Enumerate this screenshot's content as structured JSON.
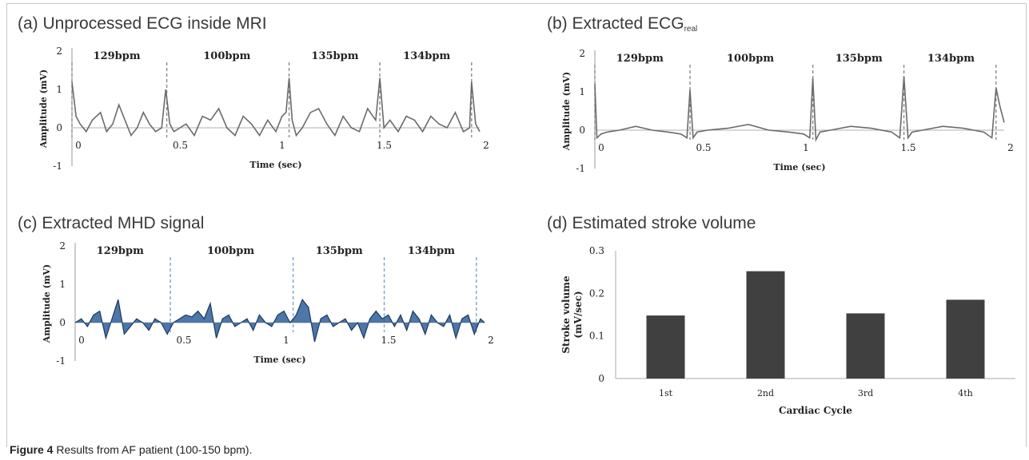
{
  "chart_data": [
    {
      "id": "a",
      "type": "line",
      "title": "(a) Unprocessed ECG inside MRI",
      "xlabel": "Time (sec)",
      "ylabel": "Amplitude (mV)",
      "xlim": [
        0,
        2
      ],
      "ylim": [
        -1,
        2
      ],
      "x_ticks": [
        "0",
        "0.5",
        "1",
        "1.5",
        "2"
      ],
      "y_ticks": [
        "-1",
        "0",
        "1",
        "2"
      ],
      "annotations": [
        "129bpm",
        "100bpm",
        "135bpm",
        "134bpm"
      ],
      "r_peaks_x": [
        0,
        0.465,
        1.065,
        1.51,
        1.96
      ],
      "color": "#6b6b6b",
      "series": [
        {
          "x": [
            0,
            0.02,
            0.04,
            0.07,
            0.1,
            0.14,
            0.17,
            0.2,
            0.23,
            0.26,
            0.29,
            0.32,
            0.35,
            0.38,
            0.41,
            0.44,
            0.46,
            0.48,
            0.5,
            0.53,
            0.56,
            0.6,
            0.64,
            0.68,
            0.72,
            0.76,
            0.8,
            0.84,
            0.88,
            0.92,
            0.96,
            1.0,
            1.03,
            1.05,
            1.065,
            1.08,
            1.1,
            1.13,
            1.17,
            1.21,
            1.25,
            1.29,
            1.33,
            1.37,
            1.41,
            1.45,
            1.49,
            1.51,
            1.53,
            1.56,
            1.6,
            1.64,
            1.68,
            1.72,
            1.76,
            1.8,
            1.84,
            1.88,
            1.92,
            1.95,
            1.96,
            1.98,
            2.0
          ],
          "y": [
            1.2,
            0.3,
            0.1,
            -0.1,
            0.2,
            0.4,
            -0.1,
            0.1,
            0.6,
            0.2,
            -0.2,
            0.0,
            0.4,
            0.1,
            -0.1,
            0.0,
            1.0,
            0.1,
            -0.1,
            0.0,
            0.1,
            -0.2,
            0.3,
            0.2,
            0.5,
            0.0,
            -0.2,
            0.3,
            0.1,
            -0.2,
            0.2,
            -0.1,
            0.3,
            0.4,
            1.3,
            0.2,
            -0.2,
            0.0,
            0.4,
            0.5,
            0.1,
            -0.2,
            0.3,
            0.0,
            -0.1,
            0.5,
            0.2,
            1.3,
            0.0,
            0.2,
            -0.1,
            0.3,
            0.2,
            -0.1,
            0.3,
            0.1,
            0.0,
            0.4,
            -0.1,
            0.0,
            1.2,
            0.1,
            -0.1
          ]
        }
      ]
    },
    {
      "id": "b",
      "type": "line",
      "title": "(b) Extracted ECG",
      "title_subscript": "real",
      "xlabel": "Time (sec)",
      "ylabel": "Amplitude (mV)",
      "xlim": [
        0,
        2
      ],
      "ylim": [
        -1,
        2
      ],
      "x_ticks": [
        "0",
        "0.5",
        "1",
        "1.5",
        "2"
      ],
      "y_ticks": [
        "-1",
        "0",
        "1",
        "2"
      ],
      "annotations": [
        "129bpm",
        "100bpm",
        "135bpm",
        "134bpm"
      ],
      "r_peaks_x": [
        0,
        0.465,
        1.065,
        1.51,
        1.96
      ],
      "color": "#6b6b6b",
      "series": [
        {
          "x": [
            0,
            0.01,
            0.03,
            0.06,
            0.12,
            0.2,
            0.28,
            0.36,
            0.42,
            0.45,
            0.465,
            0.48,
            0.5,
            0.55,
            0.65,
            0.75,
            0.85,
            0.95,
            1.02,
            1.05,
            1.065,
            1.08,
            1.1,
            1.15,
            1.25,
            1.35,
            1.45,
            1.49,
            1.51,
            1.53,
            1.55,
            1.6,
            1.7,
            1.8,
            1.9,
            1.94,
            1.96,
            1.98,
            2.0
          ],
          "y": [
            1.2,
            -0.2,
            -0.1,
            -0.05,
            0.0,
            0.1,
            0.0,
            -0.05,
            -0.1,
            -0.2,
            1.05,
            -0.2,
            -0.05,
            0.0,
            0.05,
            0.15,
            0.0,
            -0.05,
            -0.1,
            -0.2,
            1.35,
            -0.25,
            -0.05,
            0.0,
            0.1,
            0.05,
            -0.05,
            -0.2,
            1.4,
            -0.2,
            -0.05,
            0.0,
            0.1,
            0.05,
            -0.05,
            -0.2,
            1.1,
            0.6,
            0.2
          ]
        }
      ]
    },
    {
      "id": "c",
      "type": "area",
      "title": "(c) Extracted MHD signal",
      "xlabel": "Time (sec)",
      "ylabel": "Amplitude (mV)",
      "xlim": [
        0,
        2
      ],
      "ylim": [
        -1,
        2
      ],
      "x_ticks": [
        "0",
        "0.5",
        "1",
        "1.5",
        "2"
      ],
      "y_ticks": [
        "-1",
        "0",
        "1",
        "2"
      ],
      "annotations": [
        "129bpm",
        "100bpm",
        "135bpm",
        "134bpm"
      ],
      "r_peaks_x": [
        0.465,
        1.065,
        1.51,
        1.96
      ],
      "color": "#2f5f9a",
      "series": [
        {
          "x": [
            0,
            0.03,
            0.06,
            0.09,
            0.12,
            0.15,
            0.18,
            0.21,
            0.24,
            0.27,
            0.3,
            0.33,
            0.36,
            0.39,
            0.42,
            0.45,
            0.48,
            0.51,
            0.54,
            0.57,
            0.6,
            0.63,
            0.66,
            0.69,
            0.72,
            0.75,
            0.78,
            0.81,
            0.84,
            0.87,
            0.9,
            0.93,
            0.96,
            0.99,
            1.02,
            1.05,
            1.08,
            1.11,
            1.14,
            1.17,
            1.2,
            1.23,
            1.26,
            1.29,
            1.32,
            1.35,
            1.38,
            1.41,
            1.44,
            1.47,
            1.5,
            1.53,
            1.56,
            1.59,
            1.62,
            1.65,
            1.68,
            1.71,
            1.74,
            1.77,
            1.8,
            1.83,
            1.86,
            1.89,
            1.92,
            1.95,
            1.98,
            2.0
          ],
          "y": [
            0.0,
            0.1,
            -0.1,
            0.2,
            0.3,
            -0.4,
            0.1,
            0.6,
            -0.3,
            -0.1,
            0.1,
            0.0,
            -0.2,
            0.1,
            0.0,
            -0.3,
            0.0,
            0.1,
            0.2,
            0.15,
            0.3,
            0.1,
            0.5,
            -0.4,
            0.1,
            0.2,
            -0.1,
            0.0,
            0.1,
            -0.2,
            0.2,
            0.0,
            -0.1,
            0.2,
            0.3,
            0.0,
            0.2,
            0.6,
            0.4,
            -0.5,
            0.1,
            0.2,
            -0.1,
            0.0,
            0.1,
            -0.2,
            0.0,
            -0.4,
            0.1,
            0.3,
            0.1,
            0.2,
            -0.1,
            0.2,
            -0.2,
            0.3,
            0.1,
            -0.3,
            0.2,
            0.0,
            -0.1,
            0.2,
            -0.4,
            0.1,
            0.2,
            -0.3,
            0.1,
            0.0
          ]
        }
      ]
    },
    {
      "id": "d",
      "type": "bar",
      "title": "(d) Estimated stroke volume",
      "xlabel": "Cardiac Cycle",
      "ylabel_lines": [
        "Stroke volume",
        "(mV/sec)"
      ],
      "ylim": [
        0,
        0.3
      ],
      "y_ticks": [
        "0",
        "0.1",
        "0.2",
        "0.3"
      ],
      "categories": [
        "1st",
        "2nd",
        "3rd",
        "4th"
      ],
      "values": [
        0.148,
        0.252,
        0.153,
        0.185
      ],
      "color": "#404040"
    }
  ],
  "caption": {
    "label": "Figure 4",
    "text": "Results from AF patient (100-150 bpm)."
  }
}
